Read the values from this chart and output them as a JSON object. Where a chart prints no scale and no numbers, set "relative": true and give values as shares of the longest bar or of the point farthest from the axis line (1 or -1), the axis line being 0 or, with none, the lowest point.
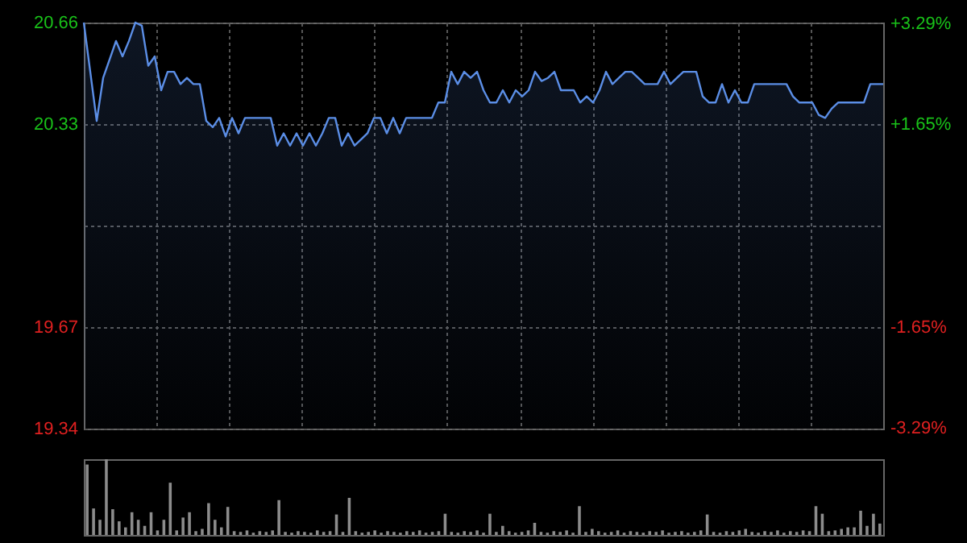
{
  "chart_data": [
    {
      "type": "area",
      "categories": [
        null,
        null,
        null,
        null,
        null,
        null,
        null,
        null,
        null,
        null,
        null,
        null,
        null,
        null,
        null,
        null,
        null,
        null,
        null,
        null,
        null,
        null,
        null,
        null,
        null,
        null,
        null,
        null,
        null,
        null,
        null,
        null,
        null,
        null,
        null,
        null,
        null,
        null,
        null,
        null,
        null,
        null,
        null,
        null,
        null,
        null,
        null,
        null,
        null,
        null,
        null,
        null,
        null,
        null,
        null,
        null,
        null,
        null,
        null,
        null,
        null,
        null,
        null,
        null,
        null,
        null,
        null,
        null,
        null,
        null,
        null,
        null,
        null,
        null,
        null,
        null,
        null,
        null,
        null,
        null,
        null,
        null,
        null,
        null,
        null,
        null,
        null,
        null,
        null,
        null,
        null,
        null,
        null,
        null,
        null,
        null,
        null,
        null,
        null,
        null,
        null,
        null,
        null,
        null,
        null,
        null,
        null,
        null,
        null,
        null,
        null,
        null,
        null,
        null,
        null,
        null,
        null,
        null,
        null,
        null,
        null,
        null,
        null,
        null,
        null
      ],
      "color": "#5b8ee6",
      "values": [
        20.66,
        20.5,
        20.34,
        20.48,
        20.54,
        20.6,
        20.55,
        20.6,
        20.66,
        20.65,
        20.52,
        20.55,
        20.44,
        20.5,
        20.5,
        20.46,
        20.48,
        20.46,
        20.46,
        20.34,
        20.32,
        20.35,
        20.29,
        20.35,
        20.3,
        20.35,
        20.35,
        20.35,
        20.35,
        20.35,
        20.26,
        20.3,
        20.26,
        20.3,
        20.26,
        20.3,
        20.26,
        20.3,
        20.35,
        20.35,
        20.26,
        20.3,
        20.26,
        20.28,
        20.3,
        20.35,
        20.35,
        20.3,
        20.35,
        20.3,
        20.35,
        20.35,
        20.35,
        20.35,
        20.35,
        20.4,
        20.4,
        20.5,
        20.46,
        20.5,
        20.48,
        20.5,
        20.44,
        20.4,
        20.4,
        20.44,
        20.4,
        20.44,
        20.42,
        20.44,
        20.5,
        20.47,
        20.48,
        20.5,
        20.44,
        20.44,
        20.44,
        20.4,
        20.42,
        20.4,
        20.44,
        20.5,
        20.46,
        20.48,
        20.5,
        20.5,
        20.48,
        20.46,
        20.46,
        20.46,
        20.5,
        20.46,
        20.48,
        20.5,
        20.5,
        20.5,
        20.42,
        20.4,
        20.4,
        20.46,
        20.4,
        20.44,
        20.4,
        20.4,
        20.46,
        20.46,
        20.46,
        20.46,
        20.46,
        20.46,
        20.42,
        20.4,
        20.4,
        20.4,
        20.36,
        20.35,
        20.38,
        20.4,
        20.4,
        20.4,
        20.4,
        20.4,
        20.46,
        20.46,
        20.46
      ],
      "ylim": [
        19.34,
        20.66
      ],
      "yticks": [
        20.66,
        20.33,
        {
          "value": 20.0,
          "label": null
        },
        19.67,
        19.34
      ],
      "y2lim": [
        -3.3,
        3.3
      ],
      "y2ticks": [
        {
          "value": 3.29,
          "label": "+3.29%"
        },
        {
          "value": 1.65,
          "label": "+1.65%"
        },
        {
          "value": -1.65,
          "label": "-1.65%"
        },
        {
          "value": -3.29,
          "label": "-3.29%"
        }
      ],
      "grid": true,
      "tick_labels": "y"
    },
    {
      "type": "bar",
      "relative": true,
      "categories": [
        null,
        null,
        null,
        null,
        null,
        null,
        null,
        null,
        null,
        null,
        null,
        null,
        null,
        null,
        null,
        null,
        null,
        null,
        null,
        null,
        null,
        null,
        null,
        null,
        null,
        null,
        null,
        null,
        null,
        null,
        null,
        null,
        null,
        null,
        null,
        null,
        null,
        null,
        null,
        null,
        null,
        null,
        null,
        null,
        null,
        null,
        null,
        null,
        null,
        null,
        null,
        null,
        null,
        null,
        null,
        null,
        null,
        null,
        null,
        null,
        null,
        null,
        null,
        null,
        null,
        null,
        null,
        null,
        null,
        null,
        null,
        null,
        null,
        null,
        null,
        null,
        null,
        null,
        null,
        null,
        null,
        null,
        null,
        null,
        null,
        null,
        null,
        null,
        null,
        null,
        null,
        null,
        null,
        null,
        null,
        null,
        null,
        null,
        null,
        null,
        null,
        null,
        null,
        null,
        null,
        null,
        null,
        null,
        null,
        null,
        null,
        null,
        null,
        null,
        null,
        null,
        null,
        null,
        null,
        null,
        null,
        null,
        null,
        null,
        null
      ],
      "color": "#8c8c8c",
      "values": [
        0.93,
        0.35,
        0.2,
        1.0,
        0.34,
        0.18,
        0.1,
        0.3,
        0.2,
        0.12,
        0.3,
        0.06,
        0.2,
        0.69,
        0.06,
        0.23,
        0.3,
        0.05,
        0.08,
        0.42,
        0.2,
        0.1,
        0.37,
        0.05,
        0.04,
        0.06,
        0.03,
        0.05,
        0.04,
        0.06,
        0.46,
        0.04,
        0.03,
        0.05,
        0.04,
        0.03,
        0.06,
        0.04,
        0.05,
        0.27,
        0.04,
        0.49,
        0.05,
        0.03,
        0.04,
        0.06,
        0.03,
        0.05,
        0.04,
        0.03,
        0.05,
        0.04,
        0.06,
        0.03,
        0.04,
        0.05,
        0.28,
        0.04,
        0.03,
        0.05,
        0.04,
        0.06,
        0.03,
        0.28,
        0.04,
        0.12,
        0.05,
        0.03,
        0.04,
        0.06,
        0.16,
        0.04,
        0.03,
        0.05,
        0.04,
        0.06,
        0.03,
        0.38,
        0.04,
        0.08,
        0.05,
        0.03,
        0.04,
        0.06,
        0.03,
        0.05,
        0.04,
        0.03,
        0.05,
        0.04,
        0.06,
        0.03,
        0.04,
        0.05,
        0.03,
        0.04,
        0.06,
        0.27,
        0.04,
        0.03,
        0.05,
        0.04,
        0.06,
        0.08,
        0.04,
        0.03,
        0.05,
        0.04,
        0.06,
        0.03,
        0.05,
        0.04,
        0.06,
        0.05,
        0.38,
        0.28,
        0.05,
        0.06,
        0.08,
        0.1,
        0.1,
        0.32,
        0.12,
        0.28,
        0.15
      ]
    }
  ]
}
